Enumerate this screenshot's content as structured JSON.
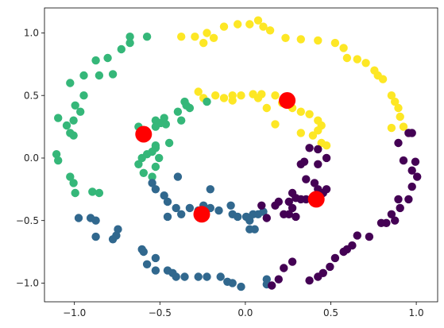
{
  "chart_data": {
    "type": "scatter",
    "title": "",
    "xlabel": "",
    "ylabel": "",
    "xlim": [
      -1.15,
      1.15
    ],
    "ylim": [
      -1.15,
      1.2
    ],
    "grid": false,
    "x_ticks": [
      -1.0,
      -0.5,
      0.0,
      0.5,
      1.0
    ],
    "y_ticks": [
      -1.0,
      -0.5,
      0.0,
      0.5,
      1.0
    ],
    "x_tick_labels": [
      "−1.0",
      "−0.5",
      "0.0",
      "0.5",
      "1.0"
    ],
    "y_tick_labels": [
      "−1.0",
      "−0.5",
      "0.0",
      "0.5",
      "1.0"
    ],
    "colors": {
      "yellow": "#fde725",
      "green": "#35b779",
      "blue": "#31688e",
      "purple": "#440154",
      "centroid": "#ff0000"
    },
    "series": [
      {
        "color": "yellow",
        "points": [
          [
            -0.35,
            0.97
          ],
          [
            -0.27,
            0.97
          ],
          [
            -0.2,
            1.0
          ],
          [
            -0.22,
            0.92
          ],
          [
            -0.16,
            0.96
          ],
          [
            -0.1,
            1.05
          ],
          [
            -0.02,
            1.07
          ],
          [
            0.05,
            1.07
          ],
          [
            0.1,
            1.1
          ],
          [
            0.13,
            1.05
          ],
          [
            0.17,
            1.02
          ],
          [
            0.26,
            0.96
          ],
          [
            0.35,
            0.95
          ],
          [
            0.45,
            0.94
          ],
          [
            0.55,
            0.92
          ],
          [
            0.6,
            0.88
          ],
          [
            0.62,
            0.8
          ],
          [
            0.68,
            0.79
          ],
          [
            0.73,
            0.76
          ],
          [
            0.78,
            0.7
          ],
          [
            0.8,
            0.66
          ],
          [
            0.83,
            0.63
          ],
          [
            0.88,
            0.5
          ],
          [
            0.9,
            0.45
          ],
          [
            0.92,
            0.4
          ],
          [
            0.93,
            0.33
          ],
          [
            0.95,
            0.25
          ],
          [
            0.88,
            0.24
          ],
          [
            -0.25,
            0.53
          ],
          [
            -0.22,
            0.48
          ],
          [
            -0.15,
            0.5
          ],
          [
            -0.1,
            0.48
          ],
          [
            -0.05,
            0.46
          ],
          [
            0.0,
            0.5
          ],
          [
            0.07,
            0.51
          ],
          [
            0.12,
            0.51
          ],
          [
            0.2,
            0.5
          ],
          [
            0.24,
            0.44
          ],
          [
            0.3,
            0.4
          ],
          [
            0.35,
            0.37
          ],
          [
            0.4,
            0.35
          ],
          [
            0.45,
            0.3
          ],
          [
            0.47,
            0.26
          ],
          [
            0.45,
            0.22
          ],
          [
            0.42,
            0.18
          ],
          [
            0.47,
            0.12
          ],
          [
            0.5,
            0.1
          ],
          [
            0.35,
            0.2
          ],
          [
            0.15,
            0.4
          ],
          [
            0.1,
            0.48
          ],
          [
            -0.05,
            0.5
          ],
          [
            0.2,
            0.27
          ]
        ]
      },
      {
        "color": "green",
        "points": [
          [
            -0.55,
            0.97
          ],
          [
            -0.65,
            0.97
          ],
          [
            -0.65,
            0.92
          ],
          [
            -0.7,
            0.87
          ],
          [
            -0.78,
            0.8
          ],
          [
            -0.85,
            0.78
          ],
          [
            -0.75,
            0.67
          ],
          [
            -0.83,
            0.66
          ],
          [
            -0.92,
            0.66
          ],
          [
            -1.0,
            0.6
          ],
          [
            -0.92,
            0.5
          ],
          [
            -0.97,
            0.42
          ],
          [
            -0.94,
            0.37
          ],
          [
            -0.98,
            0.3
          ],
          [
            -1.02,
            0.26
          ],
          [
            -1.0,
            0.2
          ],
          [
            -0.98,
            0.18
          ],
          [
            -1.07,
            0.32
          ],
          [
            -1.08,
            0.03
          ],
          [
            -1.07,
            -0.02
          ],
          [
            -1.0,
            -0.15
          ],
          [
            -0.98,
            -0.2
          ],
          [
            -0.87,
            -0.27
          ],
          [
            -0.97,
            -0.28
          ],
          [
            -0.83,
            -0.28
          ],
          [
            -0.33,
            0.45
          ],
          [
            -0.32,
            0.42
          ],
          [
            -0.3,
            0.4
          ],
          [
            -0.37,
            0.37
          ],
          [
            -0.35,
            0.3
          ],
          [
            -0.45,
            0.32
          ],
          [
            -0.5,
            0.3
          ],
          [
            -0.47,
            0.28
          ],
          [
            -0.44,
            0.27
          ],
          [
            -0.5,
            0.25
          ],
          [
            -0.56,
            0.22
          ],
          [
            -0.6,
            0.25
          ],
          [
            -0.5,
            0.1
          ],
          [
            -0.5,
            0.08
          ],
          [
            -0.52,
            0.05
          ],
          [
            -0.55,
            0.03
          ],
          [
            -0.58,
            0.0
          ],
          [
            -0.5,
            -0.07
          ],
          [
            -0.57,
            -0.12
          ],
          [
            -0.52,
            -0.15
          ],
          [
            -0.48,
            0.0
          ],
          [
            -0.2,
            0.45
          ],
          [
            -0.6,
            -0.05
          ],
          [
            -0.42,
            0.12
          ]
        ]
      },
      {
        "color": "blue",
        "points": [
          [
            -0.95,
            -0.48
          ],
          [
            -0.88,
            -0.48
          ],
          [
            -0.85,
            -0.5
          ],
          [
            -0.72,
            -0.57
          ],
          [
            -0.73,
            -0.62
          ],
          [
            -0.85,
            -0.63
          ],
          [
            -0.75,
            -0.65
          ],
          [
            -0.58,
            -0.73
          ],
          [
            -0.57,
            -0.75
          ],
          [
            -0.5,
            -0.8
          ],
          [
            -0.55,
            -0.85
          ],
          [
            -0.5,
            -0.9
          ],
          [
            -0.43,
            -0.9
          ],
          [
            -0.4,
            -0.92
          ],
          [
            -0.38,
            -0.95
          ],
          [
            -0.33,
            -0.95
          ],
          [
            -0.25,
            -0.95
          ],
          [
            -0.2,
            -0.95
          ],
          [
            -0.12,
            -0.95
          ],
          [
            -0.08,
            -0.99
          ],
          [
            -0.05,
            -1.0
          ],
          [
            0.0,
            -1.03
          ],
          [
            0.15,
            -0.97
          ],
          [
            0.15,
            -1.01
          ],
          [
            -0.52,
            -0.2
          ],
          [
            -0.5,
            -0.25
          ],
          [
            -0.45,
            -0.3
          ],
          [
            -0.43,
            -0.35
          ],
          [
            -0.38,
            -0.4
          ],
          [
            -0.43,
            -0.47
          ],
          [
            -0.35,
            -0.45
          ],
          [
            -0.3,
            -0.4
          ],
          [
            -0.25,
            -0.42
          ],
          [
            -0.22,
            -0.38
          ],
          [
            -0.18,
            -0.4
          ],
          [
            -0.13,
            -0.42
          ],
          [
            -0.06,
            -0.38
          ],
          [
            -0.05,
            -0.45
          ],
          [
            -0.02,
            -0.47
          ],
          [
            0.03,
            -0.47
          ],
          [
            0.05,
            -0.5
          ],
          [
            0.07,
            -0.45
          ],
          [
            0.1,
            -0.45
          ],
          [
            0.13,
            -0.43
          ],
          [
            0.05,
            -0.57
          ],
          [
            0.08,
            -0.57
          ],
          [
            -0.18,
            -0.25
          ],
          [
            -0.37,
            -0.15
          ]
        ]
      },
      {
        "color": "purple",
        "points": [
          [
            0.98,
            0.2
          ],
          [
            1.0,
            0.2
          ],
          [
            0.92,
            0.12
          ],
          [
            0.95,
            -0.02
          ],
          [
            1.02,
            -0.03
          ],
          [
            1.0,
            -0.1
          ],
          [
            1.03,
            -0.15
          ],
          [
            1.0,
            -0.23
          ],
          [
            0.98,
            -0.33
          ],
          [
            0.92,
            -0.33
          ],
          [
            0.93,
            -0.4
          ],
          [
            0.88,
            -0.45
          ],
          [
            0.9,
            -0.5
          ],
          [
            0.85,
            -0.52
          ],
          [
            0.82,
            -0.52
          ],
          [
            0.75,
            -0.63
          ],
          [
            0.68,
            -0.62
          ],
          [
            0.65,
            -0.7
          ],
          [
            0.62,
            -0.73
          ],
          [
            0.6,
            -0.75
          ],
          [
            0.55,
            -0.8
          ],
          [
            0.52,
            -0.87
          ],
          [
            0.48,
            -0.92
          ],
          [
            0.45,
            -0.95
          ],
          [
            0.4,
            -0.98
          ],
          [
            0.3,
            -0.83
          ],
          [
            0.25,
            -0.88
          ],
          [
            0.22,
            -0.97
          ],
          [
            0.18,
            -1.02
          ],
          [
            0.45,
            0.07
          ],
          [
            0.5,
            0.0
          ],
          [
            0.45,
            -0.05
          ],
          [
            0.37,
            -0.03
          ],
          [
            0.35,
            -0.05
          ],
          [
            0.38,
            -0.17
          ],
          [
            0.43,
            -0.2
          ],
          [
            0.45,
            -0.25
          ],
          [
            0.48,
            -0.28
          ],
          [
            0.43,
            -0.3
          ],
          [
            0.38,
            -0.33
          ],
          [
            0.35,
            -0.33
          ],
          [
            0.32,
            -0.32
          ],
          [
            0.28,
            -0.35
          ],
          [
            0.22,
            -0.35
          ],
          [
            0.2,
            -0.38
          ],
          [
            0.12,
            -0.38
          ],
          [
            0.15,
            -0.48
          ],
          [
            0.32,
            -0.47
          ],
          [
            0.28,
            -0.45
          ],
          [
            0.25,
            -0.45
          ],
          [
            0.3,
            -0.4
          ],
          [
            0.4,
            0.08
          ],
          [
            0.5,
            -0.25
          ],
          [
            0.3,
            -0.28
          ]
        ]
      }
    ],
    "centroids": [
      [
        0.27,
        0.46
      ],
      [
        -0.57,
        0.19
      ],
      [
        -0.23,
        -0.45
      ],
      [
        0.44,
        -0.33
      ]
    ]
  }
}
